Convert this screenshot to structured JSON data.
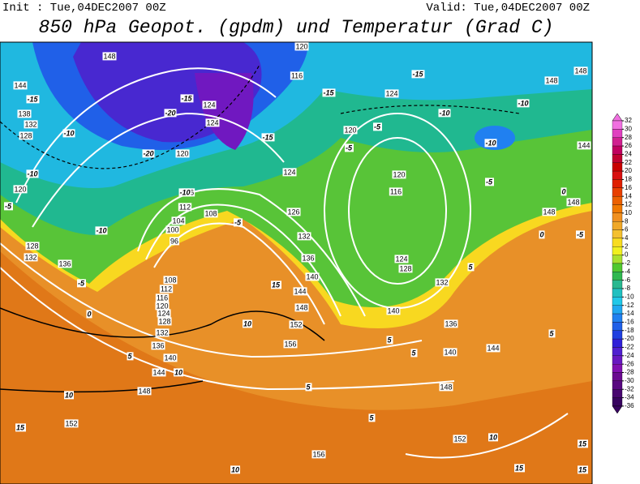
{
  "header": {
    "init": "Init : Tue,04DEC2007 00Z",
    "valid": "Valid: Tue,04DEC2007 00Z",
    "title": "850 hPa Geopot. (gpdm) und Temperatur (Grad C)"
  },
  "contour_labels": {
    "geopotential": [
      "148",
      "144",
      "138",
      "132",
      "128",
      "120",
      "124",
      "124",
      "120",
      "116",
      "112",
      "108",
      "104",
      "100",
      "96",
      "108",
      "112",
      "116",
      "120",
      "124",
      "128",
      "132",
      "136",
      "140",
      "144",
      "148",
      "152",
      "156",
      "152",
      "148",
      "144",
      "140",
      "136",
      "132",
      "126",
      "124",
      "116",
      "120",
      "124",
      "120",
      "120",
      "116",
      "124",
      "128",
      "132",
      "136",
      "140",
      "140",
      "144",
      "148",
      "152",
      "156",
      "148",
      "148",
      "144",
      "148",
      "148",
      "128",
      "132",
      "136"
    ],
    "temperature": [
      "-15",
      "-10",
      "-10",
      "-5",
      "-10",
      "-5",
      "0",
      "5",
      "10",
      "10",
      "15",
      "10",
      "-20",
      "-20",
      "-15",
      "-15",
      "-10",
      "-5",
      "-15",
      "-15",
      "-10",
      "-10",
      "-10",
      "-5",
      "-5",
      "-5",
      "0",
      "0",
      "5",
      "5",
      "5",
      "5",
      "10",
      "15",
      "10",
      "15",
      "15",
      "15",
      "-5",
      "5",
      "5"
    ]
  },
  "colorbar": {
    "levels": [
      32,
      30,
      28,
      26,
      24,
      22,
      20,
      18,
      16,
      14,
      12,
      10,
      8,
      6,
      4,
      2,
      0,
      -2,
      -4,
      -6,
      -8,
      -10,
      -12,
      -14,
      -16,
      -18,
      -20,
      -22,
      -24,
      -26,
      -28,
      -30,
      -32,
      -34,
      -36
    ],
    "colors": [
      "#f070e0",
      "#e040c0",
      "#d02090",
      "#c00060",
      "#c00030",
      "#c80000",
      "#d81010",
      "#e02000",
      "#e84000",
      "#ec6000",
      "#f07800",
      "#f09020",
      "#f0a828",
      "#f4c030",
      "#f8dc20",
      "#f0f020",
      "#a8e030",
      "#50c830",
      "#30b850",
      "#28b890",
      "#20c0c0",
      "#20c8e8",
      "#20a8f0",
      "#2080f0",
      "#2060e8",
      "#2040e0",
      "#3020d8",
      "#5020d0",
      "#6818c0",
      "#8010b0",
      "#6a0a90",
      "#580880",
      "#480670",
      "#380460"
    ]
  }
}
